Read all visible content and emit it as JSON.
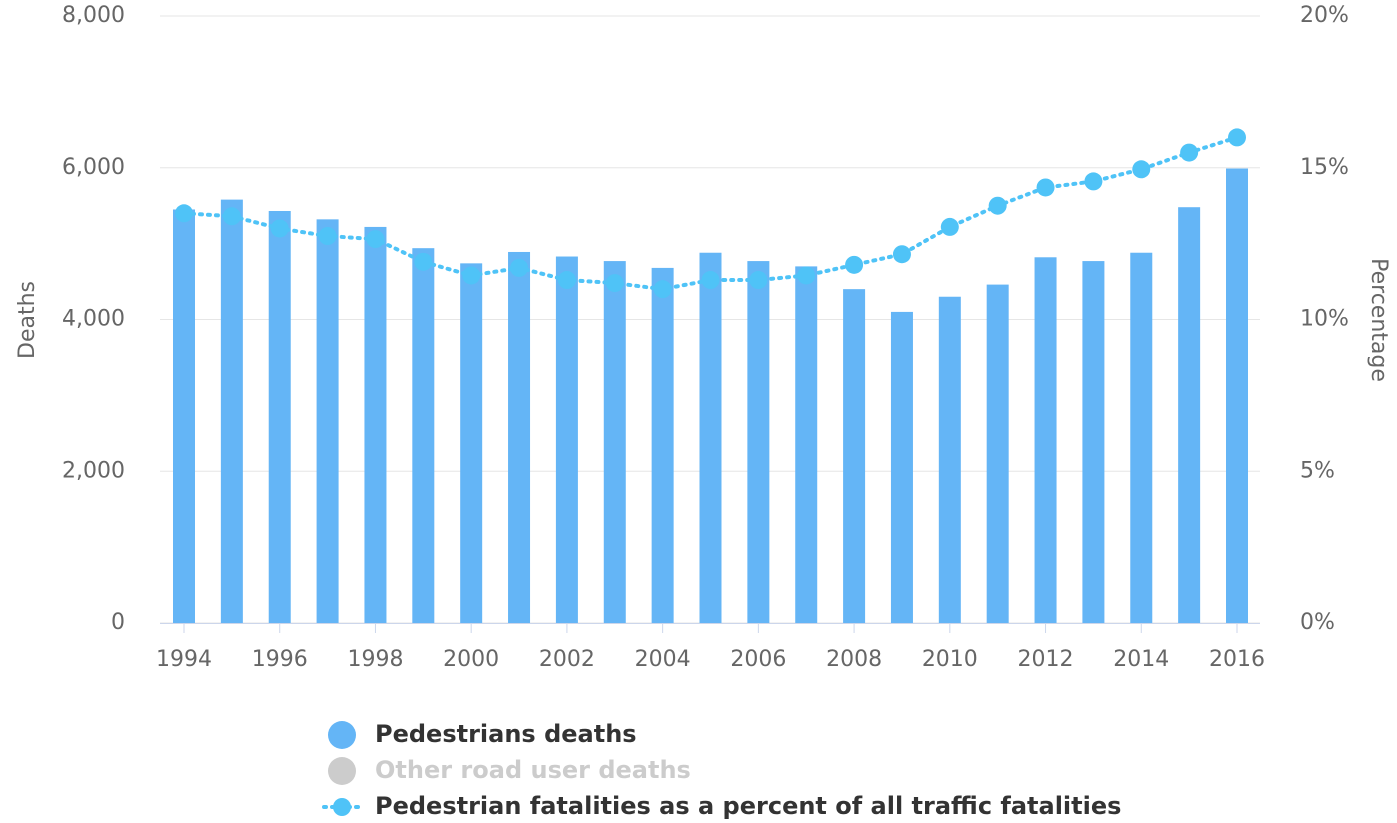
{
  "chart_data": {
    "type": "bar",
    "ylabel": "Deaths",
    "y2label": "Percentage",
    "categories": [
      "1994",
      null,
      "1996",
      null,
      "1998",
      null,
      "2000",
      null,
      "2002",
      null,
      "2004",
      null,
      "2006",
      null,
      "2008",
      null,
      "2010",
      null,
      "2012",
      null,
      "2014",
      null,
      "2016"
    ],
    "series": [
      {
        "name": "Pedestrians deaths",
        "type": "bar",
        "color": "#64b5f6",
        "values": [
          5450,
          5580,
          5430,
          5320,
          5220,
          4940,
          4740,
          4890,
          4830,
          4770,
          4680,
          4880,
          4770,
          4700,
          4400,
          4100,
          4300,
          4460,
          4820,
          4770,
          4880,
          5480,
          5990
        ]
      },
      {
        "name": "Other road user deaths",
        "type": "bar",
        "color": "#cccccc",
        "visible": false
      },
      {
        "name": "Pedestrian fatalities as a percent of all traffic fatalities",
        "type": "line",
        "axis": "y2",
        "color": "#4fc3f7",
        "dashed": true,
        "values": [
          13.5,
          13.4,
          13.0,
          12.75,
          12.65,
          11.9,
          11.45,
          11.7,
          11.3,
          11.2,
          11.0,
          11.3,
          11.3,
          11.45,
          11.8,
          12.15,
          13.05,
          13.75,
          14.35,
          14.55,
          14.95,
          15.5,
          16.0
        ]
      }
    ],
    "ylim": [
      0,
      8000
    ],
    "yticks": [
      0,
      {
        "value": 2000,
        "label": "2,000"
      },
      {
        "value": 4000,
        "label": "4,000"
      },
      {
        "value": 6000,
        "label": "6,000"
      },
      {
        "value": 8000,
        "label": "8,000"
      }
    ],
    "y2lim": [
      0,
      20
    ],
    "y2ticks": [
      {
        "value": 0,
        "label": "0%"
      },
      {
        "value": 5,
        "label": "5%"
      },
      {
        "value": 10,
        "label": "10%"
      },
      {
        "value": 15,
        "label": "15%"
      },
      {
        "value": 20,
        "label": "20%"
      }
    ],
    "grid": true,
    "legend": "bottom"
  }
}
